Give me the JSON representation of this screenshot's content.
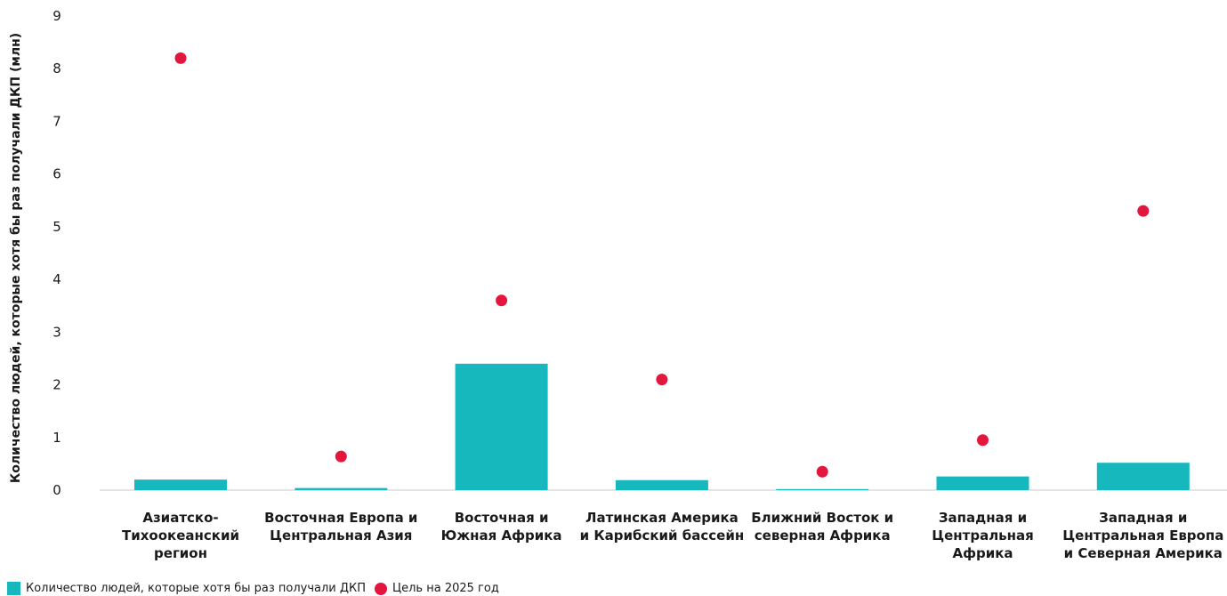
{
  "chart_data": {
    "type": "bar",
    "ylabel": "Количество людей, которые хотя бы раз получали ДКП (млн)",
    "xlabel": "",
    "ylim": [
      0,
      9
    ],
    "yticks": [
      "0",
      "1",
      "2",
      "3",
      "4",
      "5",
      "6",
      "7",
      "8",
      "9"
    ],
    "grid": false,
    "legend_position": "bottom-left",
    "categories": [
      [
        "Азиатско-",
        "Тихоокеанский",
        "регион"
      ],
      [
        "Восточная Европа и",
        "Центральная Азия"
      ],
      [
        "Восточная и",
        "Южная Африка"
      ],
      [
        "Латинская Америка",
        "и Карибский бассейн"
      ],
      [
        "Ближний Восток и",
        "северная Африка"
      ],
      [
        "Западная и",
        "Центральная",
        "Африка"
      ],
      [
        "Западная и",
        "Центральная Европа",
        "и Северная Америка"
      ]
    ],
    "series": [
      {
        "name": "Количество людей, которые хотя бы раз получали ДКП",
        "type": "bar",
        "color": "#17b8bd",
        "values": [
          0.2,
          0.04,
          2.4,
          0.19,
          0.02,
          0.26,
          0.52
        ]
      },
      {
        "name": "Цель на 2025 год",
        "type": "scatter",
        "color": "#e3163d",
        "values": [
          8.2,
          0.64,
          3.6,
          2.1,
          0.35,
          0.95,
          5.3
        ]
      }
    ]
  }
}
